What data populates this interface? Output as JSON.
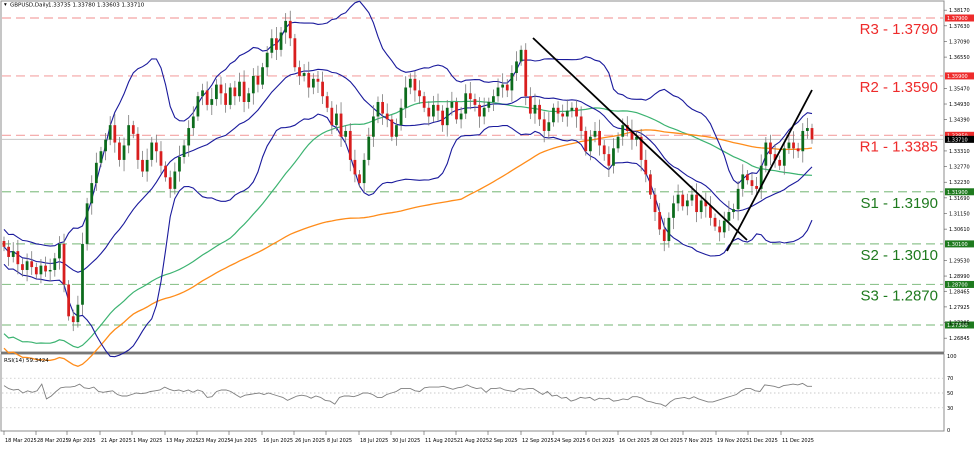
{
  "header": {
    "symbol_title": "GBPUSD,Daily",
    "ohlc": "1.33735 1.33780 1.33603 1.33710"
  },
  "rsi_panel": {
    "label": "RSI(14) 59.3424",
    "levels": [
      70,
      50,
      30
    ],
    "axis_ticks": [
      "100",
      "70",
      "50",
      "30",
      "0"
    ]
  },
  "colors": {
    "resistance": "#ee2b2b",
    "resistance_line": "#f4a3a3",
    "support": "#1e7a1e",
    "support_line": "#8fc48f",
    "bull_candle": "#0c6b1c",
    "bear_candle": "#d81e1e",
    "bollinger": "#1a1a9c",
    "ma_green": "#3cb371",
    "ma_orange": "#ff8c1a",
    "trendline": "#000000",
    "rsi_line": "#7f7f7f",
    "current_price_tag": "#000000"
  },
  "chart_data": {
    "type": "candlestick",
    "title": "GBPUSD,Daily",
    "ohlc_last": {
      "open": 1.33735,
      "high": 1.3378,
      "low": 1.33603,
      "close": 1.3371
    },
    "y_axis": {
      "min": 1.266,
      "max": 1.3835,
      "ticks": [
        "1.38170",
        "1.37630",
        "1.37090",
        "1.36550",
        "1.35470",
        "1.34930",
        "1.34390",
        "1.33310",
        "1.32770",
        "1.32230",
        "1.31690",
        "1.31150",
        "1.30610",
        "1.29530",
        "1.28990",
        "1.28465",
        "1.27925",
        "1.27385",
        "1.26845"
      ]
    },
    "x_axis": {
      "ticks": [
        "18 Mar 2025",
        "28 Mar 2025",
        "9 Apr 2025",
        "21 Apr 2025",
        "1 May 2025",
        "13 May 2025",
        "23 May 2025",
        "4 Jun 2025",
        "16 Jun 2025",
        "26 Jun 2025",
        "8 Jul 2025",
        "18 Jul 2025",
        "30 Jul 2025",
        "11 Aug 2025",
        "21 Aug 2025",
        "2 Sep 2025",
        "12 Sep 2025",
        "24 Sep 2025",
        "6 Oct 2025",
        "16 Oct 2025",
        "28 Oct 2025",
        "7 Nov 2025",
        "19 Nov 2025",
        "1 Dec 2025",
        "11 Dec 2025"
      ]
    },
    "levels": [
      {
        "name": "R3",
        "label": "R3 - 1.3790",
        "value": 1.379,
        "tag": "1.37900",
        "kind": "resistance"
      },
      {
        "name": "R2",
        "label": "R2 - 1.3590",
        "value": 1.359,
        "tag": "1.35900",
        "kind": "resistance"
      },
      {
        "name": "R1",
        "label": "R1 - 1.3385",
        "value": 1.3385,
        "tag": "1.33850",
        "kind": "resistance"
      },
      {
        "name": "S1",
        "label": "S1 - 1.3190",
        "value": 1.319,
        "tag": "1.31900",
        "kind": "support"
      },
      {
        "name": "S2",
        "label": "S2 - 1.3010",
        "value": 1.301,
        "tag": "1.30100",
        "kind": "support"
      },
      {
        "name": "S3",
        "label": "S3 - 1.2870",
        "value": 1.287,
        "tag": "1.28700",
        "kind": "support"
      },
      {
        "name": "S4",
        "label": "",
        "value": 1.273,
        "tag": "1.27300",
        "kind": "support"
      }
    ],
    "current_price": {
      "value": 1.3371,
      "tag": "1.33710"
    },
    "closes": [
      1.3,
      1.2965,
      1.2985,
      1.294,
      1.292,
      1.295,
      1.293,
      1.2905,
      1.2935,
      1.2915,
      1.292,
      1.296,
      1.301,
      1.287,
      1.276,
      1.274,
      1.28,
      1.301,
      1.315,
      1.322,
      1.329,
      1.333,
      1.337,
      1.342,
      1.336,
      1.33,
      1.335,
      1.342,
      1.339,
      1.33,
      1.326,
      1.33,
      1.336,
      1.333,
      1.328,
      1.324,
      1.32,
      1.326,
      1.331,
      1.335,
      1.341,
      1.345,
      1.352,
      1.354,
      1.349,
      1.351,
      1.356,
      1.353,
      1.349,
      1.355,
      1.352,
      1.357,
      1.35,
      1.353,
      1.359,
      1.356,
      1.362,
      1.367,
      1.372,
      1.368,
      1.374,
      1.378,
      1.372,
      1.362,
      1.359,
      1.36,
      1.355,
      1.358,
      1.357,
      1.352,
      1.348,
      1.342,
      1.346,
      1.338,
      1.34,
      1.33,
      1.325,
      1.322,
      1.33,
      1.338,
      1.345,
      1.35,
      1.346,
      1.344,
      1.338,
      1.342,
      1.348,
      1.355,
      1.358,
      1.354,
      1.352,
      1.348,
      1.345,
      1.349,
      1.347,
      1.342,
      1.348,
      1.35,
      1.344,
      1.346,
      1.353,
      1.351,
      1.349,
      1.345,
      1.348,
      1.35,
      1.352,
      1.355,
      1.356,
      1.354,
      1.36,
      1.364,
      1.368,
      1.352,
      1.346,
      1.349,
      1.344,
      1.34,
      1.343,
      1.348,
      1.346,
      1.345,
      1.347,
      1.348,
      1.345,
      1.34,
      1.333,
      1.338,
      1.34,
      1.335,
      1.332,
      1.328,
      1.334,
      1.338,
      1.342,
      1.34,
      1.337,
      1.338,
      1.33,
      1.325,
      1.318,
      1.312,
      1.306,
      1.302,
      1.31,
      1.315,
      1.318,
      1.314,
      1.316,
      1.318,
      1.312,
      1.316,
      1.314,
      1.31,
      1.307,
      1.305,
      1.309,
      1.312,
      1.313,
      1.32,
      1.325,
      1.323,
      1.321,
      1.32,
      1.328,
      1.336,
      1.332,
      1.33,
      1.328,
      1.334,
      1.336,
      1.334,
      1.333,
      1.34,
      1.341,
      1.3371
    ],
    "rsi": [
      60,
      56,
      54,
      55,
      50,
      53,
      51,
      53,
      62,
      42,
      46,
      52,
      57,
      58,
      58,
      59,
      62,
      57,
      56,
      58,
      52,
      51,
      52,
      53,
      48,
      46,
      46,
      48,
      50,
      49,
      50,
      52,
      53,
      54,
      58,
      55,
      53,
      54,
      52,
      54,
      51,
      54,
      52,
      44,
      45,
      52,
      54,
      54,
      52,
      48,
      44,
      47,
      48,
      49,
      50,
      48,
      50,
      48,
      46,
      44,
      40,
      43,
      46,
      47,
      46,
      43,
      46,
      44,
      40,
      39,
      35,
      44,
      46,
      46,
      45,
      47,
      50,
      50,
      48,
      44,
      44,
      48,
      50,
      52,
      56,
      56,
      56,
      53,
      52,
      57,
      58,
      58,
      58,
      59,
      57,
      55,
      57,
      58,
      61,
      58,
      56,
      57,
      51,
      56,
      56,
      57,
      54,
      53,
      52,
      56,
      55,
      56,
      56,
      52,
      48,
      52,
      46,
      47,
      43,
      44,
      39,
      41,
      44,
      43,
      44,
      40,
      43,
      42,
      43,
      39,
      40,
      42,
      41,
      45,
      45,
      43,
      39,
      38,
      36,
      35,
      32,
      38,
      42,
      43,
      44,
      42,
      45,
      42,
      40,
      38,
      38,
      40,
      42,
      44,
      46,
      48,
      53,
      56,
      56,
      53,
      52,
      61,
      60,
      59,
      57,
      60,
      61,
      62,
      61,
      63,
      59,
      59
    ]
  }
}
